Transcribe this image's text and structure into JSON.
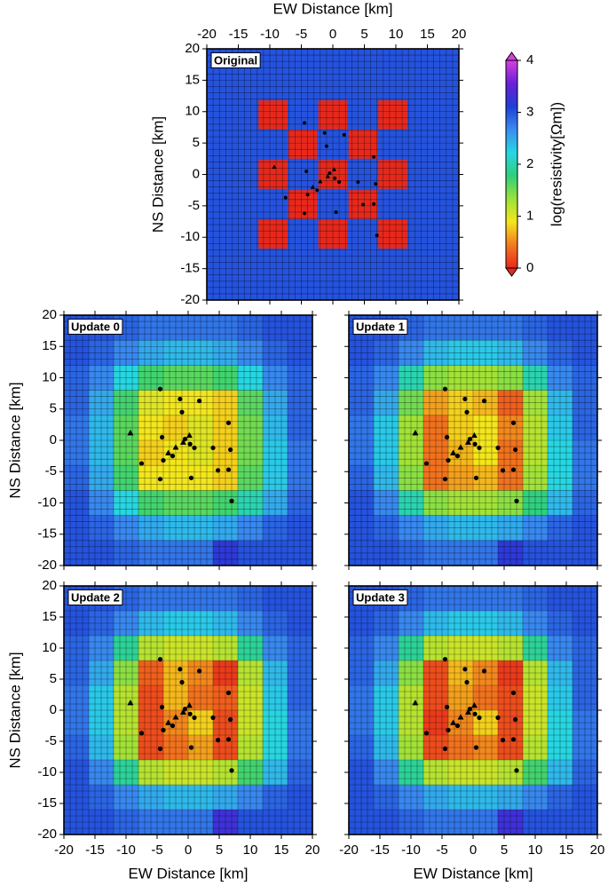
{
  "stations": {
    "x": [
      -4.5,
      -1.3,
      1.8,
      -1,
      6.5,
      -4.2,
      -0.5,
      0.3,
      1,
      -7.5,
      -4,
      4,
      6.8,
      -4.5,
      0.5,
      4.8,
      6.5,
      7,
      -2.5
    ],
    "y": [
      8.2,
      6.6,
      6.3,
      4.5,
      2.8,
      0.5,
      0.2,
      -0.6,
      -1.2,
      -3.7,
      -3.2,
      -1.2,
      -1.5,
      -6.2,
      -6,
      -4.8,
      -4.7,
      -9.7,
      -2.5
    ]
  },
  "triangles": {
    "x": [
      -9.3,
      -2,
      -0.8,
      0.2,
      -3.2
    ],
    "y": [
      1.2,
      -1.1,
      -0.3,
      0.8,
      -2
    ]
  },
  "chart_data": [
    {
      "type": "blocks",
      "title": "Original",
      "x_label": "EW Distance [km]",
      "y_label": "NS Distance [km]",
      "x_axis_position": "top",
      "y_tick_labels": true,
      "xlim": [
        -20,
        20
      ],
      "ylim": [
        -20,
        20
      ],
      "xticks": [
        -20,
        -15,
        -10,
        -5,
        0,
        5,
        10,
        15,
        20
      ],
      "yticks": [
        -20,
        -15,
        -10,
        -5,
        0,
        5,
        10,
        15,
        20
      ],
      "background_value": 3,
      "block_value": 0,
      "block_size": 4.6,
      "blocks": {
        "x": [
          -9.5,
          0,
          9.5,
          -4.8,
          4.8,
          -9.5,
          0,
          9.5,
          -4.8,
          4.8,
          -9.5,
          0,
          9.5
        ],
        "y": [
          9.5,
          9.5,
          9.5,
          4.8,
          4.8,
          0,
          0,
          0,
          -4.8,
          -4.8,
          -9.5,
          -9.5,
          -9.5
        ]
      },
      "colorbar": {
        "label": "log(resistivity[Ωm])",
        "clim": [
          0,
          4
        ],
        "ticks": [
          0,
          1,
          2,
          3,
          4
        ],
        "colors": [
          "#e8281c",
          "#f27a1e",
          "#f5e61c",
          "#9be23a",
          "#2fd07a",
          "#27d6e6",
          "#3a8ef0",
          "#1e3fd8",
          "#6a1fd6",
          "#d640e0"
        ]
      }
    },
    {
      "type": "heatmap",
      "title": "Update 0",
      "y_label": "NS Distance [km]",
      "x_axis_position": "none",
      "y_tick_labels": true,
      "xlim": [
        -20,
        20
      ],
      "ylim": [
        -20,
        20
      ],
      "xticks": [
        -20,
        -15,
        -10,
        -5,
        0,
        5,
        10,
        15,
        20
      ],
      "yticks": [
        -20,
        -15,
        -10,
        -5,
        0,
        5,
        10,
        15,
        20
      ],
      "grid_x": [
        -18,
        -14,
        -10,
        -6,
        -2,
        2,
        6,
        10,
        14,
        18
      ],
      "grid_y": [
        18,
        14,
        10,
        6,
        2,
        -2,
        -6,
        -10,
        -14,
        -18
      ],
      "z": [
        [
          3,
          3,
          2.9,
          2.8,
          2.8,
          2.8,
          2.8,
          2.9,
          3,
          3
        ],
        [
          3,
          2.9,
          2.7,
          2.5,
          2.4,
          2.4,
          2.5,
          2.7,
          2.9,
          3
        ],
        [
          2.9,
          2.7,
          2.2,
          1.7,
          1.6,
          1.6,
          1.7,
          2.2,
          2.7,
          2.9
        ],
        [
          2.9,
          2.5,
          1.7,
          1.0,
          0.9,
          0.9,
          0.8,
          1.6,
          2.5,
          2.9
        ],
        [
          2.8,
          2.4,
          1.6,
          0.9,
          0.8,
          1.0,
          0.8,
          1.5,
          2.4,
          2.9
        ],
        [
          2.8,
          2.4,
          1.6,
          0.8,
          0.9,
          1.0,
          0.8,
          1.5,
          2.3,
          2.8
        ],
        [
          2.9,
          2.5,
          1.7,
          0.9,
          0.9,
          0.9,
          0.8,
          1.6,
          2.3,
          2.8
        ],
        [
          3,
          2.7,
          2.2,
          1.7,
          1.6,
          1.6,
          1.7,
          2.0,
          2.5,
          2.9
        ],
        [
          3,
          2.9,
          2.7,
          2.5,
          2.4,
          2.4,
          2.5,
          2.7,
          2.9,
          3
        ],
        [
          3,
          3,
          2.9,
          2.8,
          2.8,
          2.8,
          3.2,
          3,
          3,
          3
        ]
      ]
    },
    {
      "type": "heatmap",
      "title": "Update 1",
      "x_axis_position": "none",
      "y_tick_labels": false,
      "xlim": [
        -20,
        20
      ],
      "ylim": [
        -20,
        20
      ],
      "xticks": [
        -20,
        -15,
        -10,
        -5,
        0,
        5,
        10,
        15,
        20
      ],
      "yticks": [
        -20,
        -15,
        -10,
        -5,
        0,
        5,
        10,
        15,
        20
      ],
      "grid_x": [
        -18,
        -14,
        -10,
        -6,
        -2,
        2,
        6,
        10,
        14,
        18
      ],
      "grid_y": [
        18,
        14,
        10,
        6,
        2,
        -2,
        -6,
        -10,
        -14,
        -18
      ],
      "z": [
        [
          3,
          3,
          2.9,
          2.8,
          2.8,
          2.8,
          2.8,
          2.9,
          3,
          3
        ],
        [
          3,
          2.9,
          2.7,
          2.4,
          2.3,
          2.3,
          2.4,
          2.7,
          2.9,
          3
        ],
        [
          2.9,
          2.7,
          2.0,
          1.4,
          1.3,
          1.3,
          1.4,
          2.0,
          2.7,
          2.9
        ],
        [
          2.9,
          2.5,
          1.5,
          0.6,
          0.8,
          0.7,
          0.3,
          1.3,
          2.4,
          2.9
        ],
        [
          2.8,
          2.3,
          1.3,
          0.4,
          0.8,
          0.9,
          0.5,
          1.2,
          2.3,
          2.9
        ],
        [
          2.8,
          2.3,
          1.3,
          0.4,
          0.7,
          0.9,
          0.4,
          1.2,
          2.2,
          2.8
        ],
        [
          2.9,
          2.4,
          1.4,
          0.4,
          0.6,
          0.7,
          0.4,
          1.3,
          2.2,
          2.8
        ],
        [
          3,
          2.7,
          2.0,
          1.4,
          1.3,
          1.3,
          1.4,
          1.8,
          2.4,
          2.9
        ],
        [
          3,
          2.9,
          2.7,
          2.5,
          2.4,
          2.4,
          2.5,
          2.7,
          2.9,
          3
        ],
        [
          3,
          3,
          2.9,
          2.8,
          2.8,
          2.8,
          3.2,
          3,
          3,
          3
        ]
      ]
    },
    {
      "type": "heatmap",
      "title": "Update 2",
      "x_label": "EW Distance [km]",
      "y_label": "NS Distance [km]",
      "x_axis_position": "bottom",
      "y_tick_labels": true,
      "xlim": [
        -20,
        20
      ],
      "ylim": [
        -20,
        20
      ],
      "xticks": [
        -20,
        -15,
        -10,
        -5,
        0,
        5,
        10,
        15,
        20
      ],
      "yticks": [
        -20,
        -15,
        -10,
        -5,
        0,
        5,
        10,
        15,
        20
      ],
      "grid_x": [
        -18,
        -14,
        -10,
        -6,
        -2,
        2,
        6,
        10,
        14,
        18
      ],
      "grid_y": [
        18,
        14,
        10,
        6,
        2,
        -2,
        -6,
        -10,
        -14,
        -18
      ],
      "z": [
        [
          3,
          3,
          2.9,
          2.8,
          2.8,
          2.8,
          2.8,
          2.9,
          3,
          3
        ],
        [
          3,
          2.9,
          2.7,
          2.4,
          2.3,
          2.3,
          2.4,
          2.7,
          2.9,
          3
        ],
        [
          2.9,
          2.7,
          1.9,
          1.2,
          1.1,
          1.1,
          1.2,
          1.9,
          2.7,
          2.9
        ],
        [
          2.9,
          2.5,
          1.4,
          0.3,
          0.7,
          0.5,
          0.1,
          1.2,
          2.4,
          2.9
        ],
        [
          2.8,
          2.3,
          1.2,
          0.2,
          0.7,
          0.4,
          0.3,
          1.1,
          2.3,
          2.9
        ],
        [
          2.8,
          2.3,
          1.2,
          0.2,
          0.5,
          0.8,
          0.2,
          1.1,
          2.2,
          2.8
        ],
        [
          2.9,
          2.4,
          1.3,
          0.2,
          0.4,
          0.6,
          0.2,
          1.2,
          2.2,
          2.8
        ],
        [
          3,
          2.7,
          1.9,
          1.2,
          1.1,
          1.1,
          1.2,
          1.7,
          2.4,
          2.9
        ],
        [
          3,
          2.9,
          2.7,
          2.5,
          2.4,
          2.4,
          2.5,
          2.7,
          2.9,
          3
        ],
        [
          3,
          3,
          2.9,
          2.8,
          2.8,
          2.8,
          3.3,
          3,
          3,
          3
        ]
      ]
    },
    {
      "type": "heatmap",
      "title": "Update 3",
      "x_label": "EW Distance [km]",
      "x_axis_position": "bottom",
      "y_tick_labels": false,
      "xlim": [
        -20,
        20
      ],
      "ylim": [
        -20,
        20
      ],
      "xticks": [
        -20,
        -15,
        -10,
        -5,
        0,
        5,
        10,
        15,
        20
      ],
      "yticks": [
        -20,
        -15,
        -10,
        -5,
        0,
        5,
        10,
        15,
        20
      ],
      "grid_x": [
        -18,
        -14,
        -10,
        -6,
        -2,
        2,
        6,
        10,
        14,
        18
      ],
      "grid_y": [
        18,
        14,
        10,
        6,
        2,
        -2,
        -6,
        -10,
        -14,
        -18
      ],
      "z": [
        [
          3,
          3,
          2.9,
          2.8,
          2.8,
          2.8,
          2.8,
          2.9,
          3,
          3
        ],
        [
          3,
          2.9,
          2.7,
          2.4,
          2.3,
          2.3,
          2.4,
          2.7,
          2.9,
          3
        ],
        [
          2.9,
          2.7,
          1.9,
          1.2,
          1.1,
          1.1,
          1.2,
          1.9,
          2.7,
          2.9
        ],
        [
          2.9,
          2.5,
          1.4,
          0.2,
          0.7,
          0.5,
          0.1,
          1.2,
          2.4,
          2.9
        ],
        [
          2.8,
          2.3,
          1.2,
          0.2,
          0.6,
          0.4,
          0.2,
          1.1,
          2.3,
          2.9
        ],
        [
          2.8,
          2.3,
          1.2,
          0.1,
          0.5,
          0.8,
          0.2,
          1.1,
          2.2,
          2.8
        ],
        [
          2.9,
          2.4,
          1.3,
          0.2,
          0.4,
          0.5,
          0.2,
          1.2,
          2.2,
          2.8
        ],
        [
          3,
          2.7,
          1.9,
          1.2,
          1.1,
          1.1,
          1.2,
          1.7,
          2.4,
          2.9
        ],
        [
          3,
          2.9,
          2.7,
          2.5,
          2.4,
          2.4,
          2.5,
          2.7,
          2.9,
          3
        ],
        [
          3,
          3,
          2.9,
          2.8,
          2.8,
          2.8,
          3.3,
          3,
          3,
          3
        ]
      ]
    }
  ]
}
